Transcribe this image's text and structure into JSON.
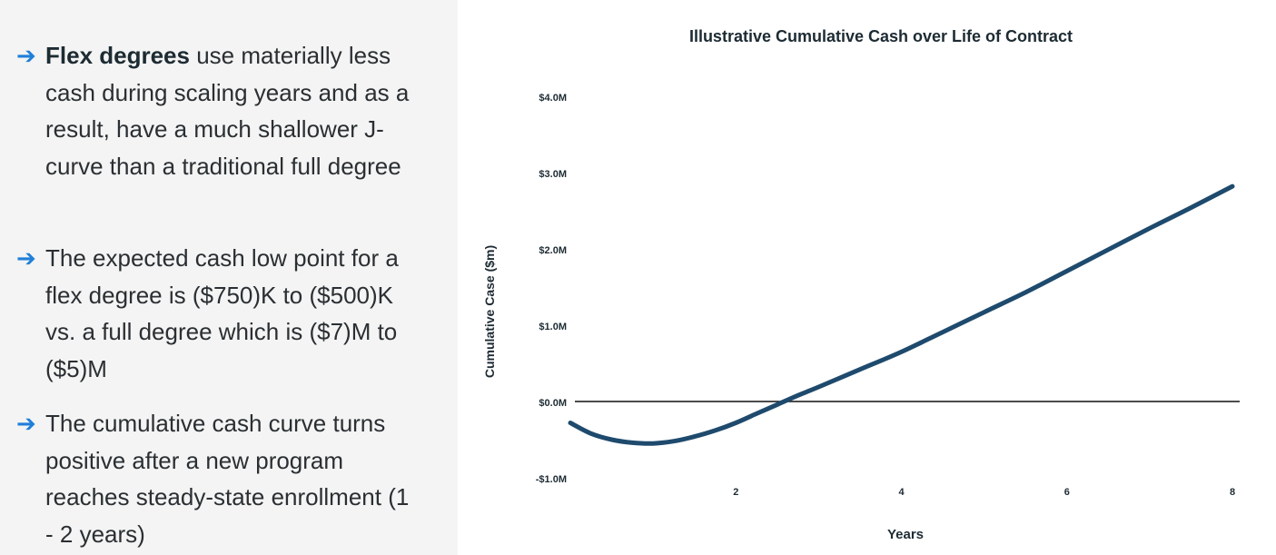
{
  "bullets": [
    {
      "bold": "Flex degrees",
      "rest": "use materially less cash during scaling years and as a result, have a much shallower J-curve than a traditional full degree"
    },
    {
      "bold": "",
      "rest": "The expected cash low point for a flex degree is ($750)K to ($500)K vs. a full degree which is ($7)M to ($5)M"
    },
    {
      "bold": "",
      "rest": "The cumulative cash curve turns positive after a new program reaches steady-state enrollment (1 - 2 years)"
    }
  ],
  "arrow_glyph": "➔",
  "colors": {
    "panel_bg": "#f3f4f3",
    "arrow": "#1f7fd9",
    "text": "#2b2f33",
    "line": "#1e4a6d"
  },
  "chart_data": {
    "type": "line",
    "title": "Illustrative Cumulative Cash over Life of Contract",
    "xlabel": "Years",
    "ylabel": "Cumulative Case ($m)",
    "xlim": [
      0,
      8
    ],
    "ylim": [
      -1,
      4
    ],
    "x_ticks": [
      2,
      4,
      6,
      8
    ],
    "x_tick_labels": [
      "2",
      "4",
      "6",
      "8"
    ],
    "y_ticks": [
      -1,
      0,
      1,
      2,
      3,
      4
    ],
    "y_tick_labels": [
      "-$1.0M",
      "$0.0M",
      "$1.0M",
      "$2.0M",
      "$3.0M",
      "$4.0M"
    ],
    "grid": false,
    "legend": false,
    "series": [
      {
        "x": [
          0.0,
          0.25,
          0.5,
          0.75,
          1.0,
          1.25,
          1.5,
          1.75,
          2.0,
          2.25,
          2.5,
          2.75,
          3.0,
          3.5,
          4.0,
          4.5,
          5.0,
          5.5,
          6.0,
          6.5,
          7.0,
          7.5,
          8.0
        ],
        "y": [
          -0.28,
          -0.42,
          -0.5,
          -0.54,
          -0.55,
          -0.52,
          -0.46,
          -0.38,
          -0.28,
          -0.16,
          -0.04,
          0.08,
          0.19,
          0.42,
          0.65,
          0.91,
          1.17,
          1.43,
          1.71,
          1.99,
          2.27,
          2.54,
          2.82
        ]
      }
    ]
  }
}
